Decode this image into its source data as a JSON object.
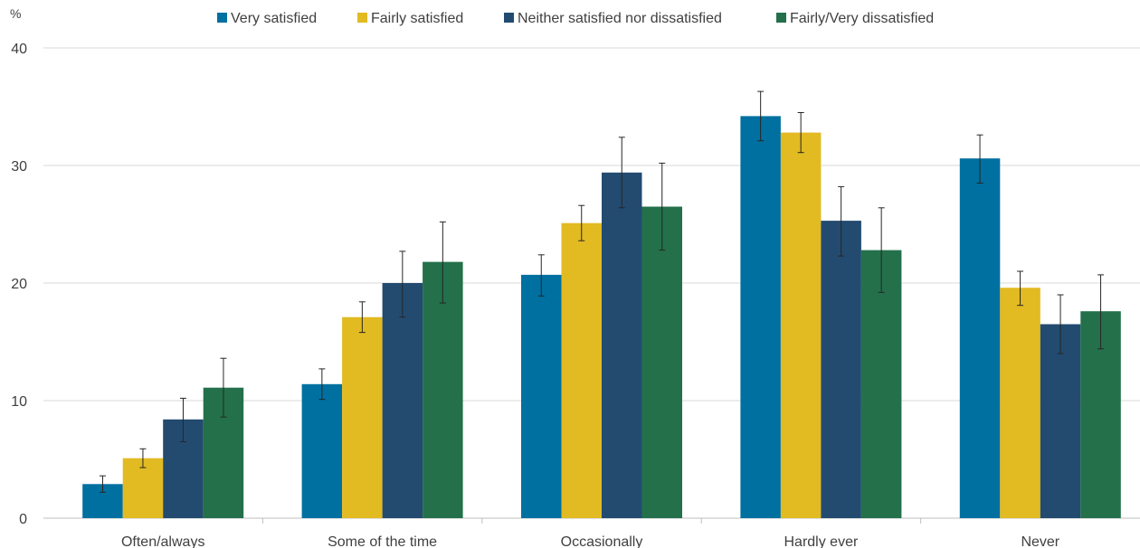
{
  "chart_data": {
    "type": "bar",
    "y_unit": "%",
    "categories": [
      "Often/always",
      "Some of the time",
      "Occasionally",
      "Hardly ever",
      "Never"
    ],
    "series": [
      {
        "name": "Very satisfied",
        "color": "#0070A0",
        "values": [
          2.9,
          11.4,
          20.7,
          34.2,
          30.6
        ],
        "error_low": [
          2.2,
          10.1,
          18.9,
          32.1,
          28.5
        ],
        "error_high": [
          3.6,
          12.7,
          22.4,
          36.3,
          32.6
        ]
      },
      {
        "name": "Fairly satisfied",
        "color": "#E2BA22",
        "values": [
          5.1,
          17.1,
          25.1,
          32.8,
          19.6
        ],
        "error_low": [
          4.3,
          15.8,
          23.6,
          31.1,
          18.1
        ],
        "error_high": [
          5.9,
          18.4,
          26.6,
          34.5,
          21.0
        ]
      },
      {
        "name": "Neither satisfied nor dissatisfied",
        "color": "#234B70",
        "values": [
          8.4,
          20.0,
          29.4,
          25.3,
          16.5
        ],
        "error_low": [
          6.5,
          17.1,
          26.4,
          22.3,
          14.0
        ],
        "error_high": [
          10.2,
          22.7,
          32.4,
          28.2,
          19.0
        ]
      },
      {
        "name": "Fairly/Very dissatisfied",
        "color": "#23704B",
        "values": [
          11.1,
          21.8,
          26.5,
          22.8,
          17.6
        ],
        "error_low": [
          8.6,
          18.3,
          22.8,
          19.2,
          14.4
        ],
        "error_high": [
          13.6,
          25.2,
          30.2,
          26.4,
          20.7
        ]
      }
    ],
    "yticks": [
      0,
      10,
      20,
      30,
      40
    ],
    "ylim": [
      0,
      40
    ],
    "grid": true,
    "legend_position": "top"
  }
}
